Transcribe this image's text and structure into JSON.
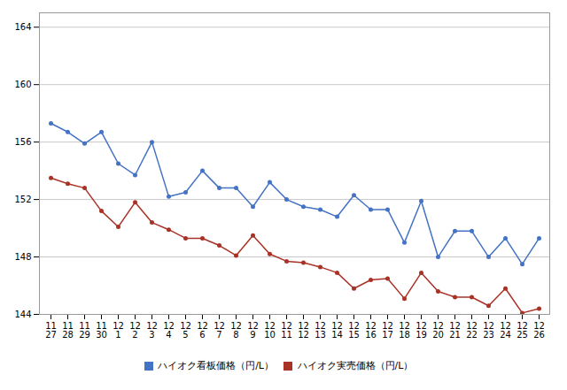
{
  "chart_data": {
    "type": "line",
    "categories": [
      "11\n27",
      "11\n28",
      "11\n29",
      "11\n30",
      "12\n1",
      "12\n2",
      "12\n3",
      "12\n4",
      "12\n5",
      "12\n6",
      "12\n7",
      "12\n8",
      "12\n9",
      "12\n10",
      "12\n11",
      "12\n12",
      "12\n13",
      "12\n14",
      "12\n15",
      "12\n16",
      "12\n17",
      "12\n18",
      "12\n19",
      "12\n20",
      "12\n21",
      "12\n22",
      "12\n23",
      "12\n24",
      "12\n25",
      "12\n26"
    ],
    "series": [
      {
        "name": "ハイオク看板価格（円/L）",
        "color": "#4472c4",
        "marker": "circle",
        "values": [
          157.3,
          156.7,
          155.9,
          156.7,
          154.5,
          153.7,
          156.0,
          152.2,
          152.5,
          154.0,
          152.8,
          152.8,
          151.5,
          153.2,
          152.0,
          151.5,
          151.3,
          150.8,
          152.3,
          151.3,
          151.3,
          149.0,
          151.9,
          148.0,
          149.8,
          149.8,
          148.0,
          149.3,
          147.5,
          149.3
        ]
      },
      {
        "name": "ハイオク実売価格（円/L）",
        "color": "#a93226",
        "marker": "circle",
        "values": [
          153.5,
          153.1,
          152.8,
          151.2,
          150.1,
          151.8,
          150.4,
          149.9,
          149.3,
          149.3,
          148.8,
          148.1,
          149.5,
          148.2,
          147.7,
          147.6,
          147.3,
          146.9,
          145.8,
          146.4,
          146.5,
          145.1,
          146.9,
          145.6,
          145.2,
          145.2,
          144.6,
          145.8,
          144.1,
          144.4
        ]
      }
    ],
    "ylim": [
      144,
      165
    ],
    "yticks": [
      144,
      148,
      152,
      156,
      160,
      164
    ],
    "grid": true,
    "legend": "bottom"
  }
}
